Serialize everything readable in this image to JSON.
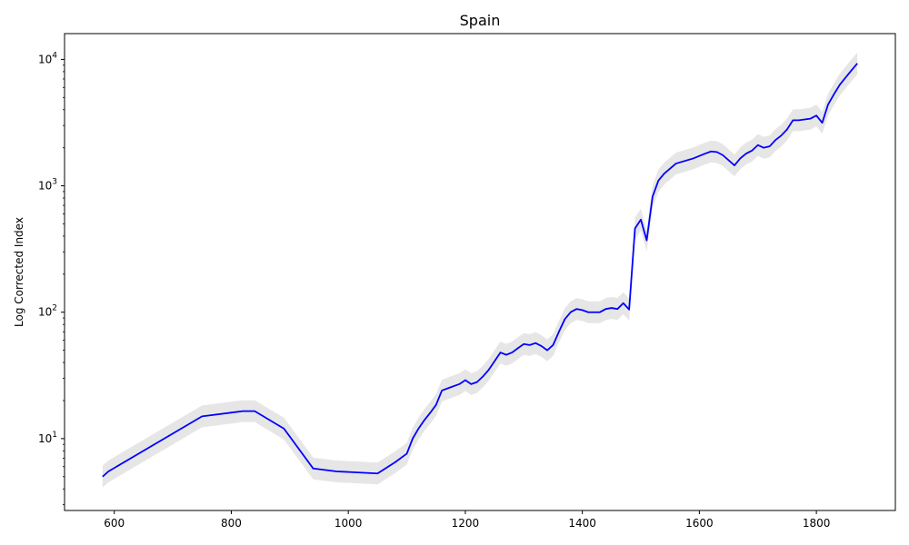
{
  "chart_data": {
    "type": "line",
    "title": "Spain",
    "xlabel": "",
    "ylabel": "Log Corrected Index",
    "yscale": "log",
    "xlim": [
      515,
      1935
    ],
    "ylim": [
      2.7,
      16000
    ],
    "x_ticks": [
      600,
      800,
      1000,
      1200,
      1400,
      1600,
      1800
    ],
    "y_ticks": [
      {
        "value": 10,
        "label": "10",
        "exp": "1"
      },
      {
        "value": 100,
        "label": "10",
        "exp": "2"
      },
      {
        "value": 1000,
        "label": "10",
        "exp": "3"
      },
      {
        "value": 10000,
        "label": "10",
        "exp": "4"
      }
    ],
    "grid": false,
    "line_color": "#0000ff",
    "band_color": "#e6e6e6",
    "series": [
      {
        "x": [
          580,
          590,
          750,
          820,
          840,
          890,
          940,
          980,
          1050,
          1080,
          1100,
          1110,
          1120,
          1130,
          1140,
          1150,
          1160,
          1170,
          1190,
          1200,
          1210,
          1220,
          1230,
          1240,
          1250,
          1260,
          1270,
          1280,
          1290,
          1300,
          1310,
          1320,
          1330,
          1340,
          1350,
          1360,
          1370,
          1380,
          1390,
          1400,
          1410,
          1420,
          1430,
          1440,
          1450,
          1460,
          1470,
          1480,
          1490,
          1500,
          1510,
          1520,
          1530,
          1540,
          1560,
          1590,
          1610,
          1620,
          1630,
          1640,
          1660,
          1670,
          1680,
          1690,
          1700,
          1710,
          1720,
          1730,
          1740,
          1750,
          1760,
          1770,
          1780,
          1790,
          1800,
          1810,
          1820,
          1830,
          1840,
          1850,
          1860,
          1870
        ],
        "values": [
          5.0,
          5.5,
          15.0,
          16.5,
          16.5,
          12.0,
          5.8,
          5.5,
          5.3,
          6.5,
          7.6,
          10.0,
          12.0,
          14.0,
          16.0,
          18.5,
          24.0,
          25.0,
          27.0,
          29.0,
          27.0,
          28.0,
          31.0,
          35.0,
          41.0,
          48.0,
          46.0,
          48.0,
          52.0,
          56.0,
          55.0,
          57.0,
          54.0,
          50.0,
          55.0,
          70.0,
          88.0,
          100.0,
          106.0,
          104.0,
          100.0,
          100.0,
          100.0,
          106.0,
          108.0,
          106.0,
          118.0,
          105.0,
          460.0,
          540.0,
          370.0,
          820.0,
          1100.0,
          1250.0,
          1500.0,
          1650.0,
          1800.0,
          1870.0,
          1850.0,
          1750.0,
          1450.0,
          1650.0,
          1800.0,
          1900.0,
          2100.0,
          2000.0,
          2050.0,
          2300.0,
          2500.0,
          2800.0,
          3300.0,
          3300.0,
          3350.0,
          3400.0,
          3600.0,
          3150.0,
          4400.0,
          5300.0,
          6300.0,
          7200.0,
          8200.0,
          9300.0
        ]
      }
    ]
  }
}
